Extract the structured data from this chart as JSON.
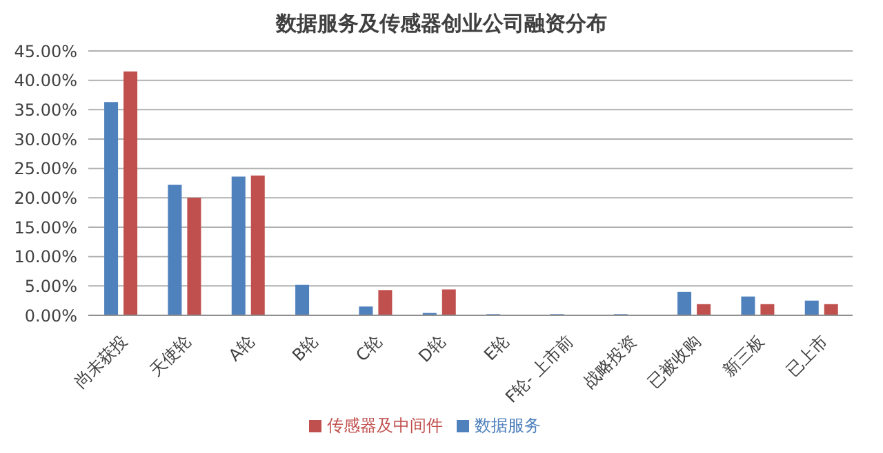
{
  "chart_data": {
    "type": "bar",
    "title": "数据服务及传感器创业公司融资分布",
    "categories": [
      "尚未获投",
      "天使轮",
      "A轮",
      "B轮",
      "C轮",
      "D轮",
      "E轮",
      "F轮- 上市前",
      "战略投资",
      "已被收购",
      "新三板",
      "已上市"
    ],
    "series": [
      {
        "name": "数据服务",
        "color": "#4f81bd",
        "values": [
          36.3,
          22.2,
          23.6,
          5.2,
          1.5,
          0.4,
          0.2,
          0.2,
          0.2,
          4.0,
          3.2,
          2.5
        ]
      },
      {
        "name": "传感器及中间件",
        "color": "#c0504d",
        "values": [
          41.5,
          20.0,
          23.8,
          0,
          4.3,
          4.4,
          0,
          0,
          0,
          1.9,
          1.9,
          1.9
        ]
      }
    ],
    "ylim": [
      0,
      45
    ],
    "yticks": [
      {
        "value": 0,
        "label": "0.00%"
      },
      {
        "value": 5,
        "label": "5.00%"
      },
      {
        "value": 10,
        "label": "10.00%"
      },
      {
        "value": 15,
        "label": "15.00%"
      },
      {
        "value": 20,
        "label": "20.00%"
      },
      {
        "value": 25,
        "label": "25.00%"
      },
      {
        "value": 30,
        "label": "30.00%"
      },
      {
        "value": 35,
        "label": "35.00%"
      },
      {
        "value": 40,
        "label": "40.00%"
      },
      {
        "value": 45,
        "label": "45.00%"
      }
    ],
    "grid": "y",
    "legend": "bottom"
  }
}
